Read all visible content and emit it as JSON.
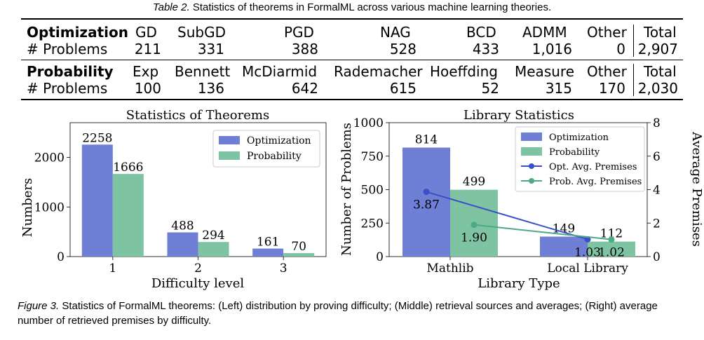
{
  "table": {
    "caption_label": "Table 2.",
    "caption_text": "Statistics of theorems in FormalML across various machine learning theories.",
    "sections": [
      {
        "name": "Optimization",
        "row_label": "# Problems",
        "columns": [
          "GD",
          "SubGD",
          "PGD",
          "NAG",
          "BCD",
          "ADMM",
          "Other"
        ],
        "values": [
          "211",
          "331",
          "388",
          "528",
          "433",
          "1,016",
          "0"
        ],
        "total_label": "Total",
        "total_value": "2,907"
      },
      {
        "name": "Probability",
        "row_label": "# Problems",
        "columns": [
          "Exp",
          "Bennett",
          "McDiarmid",
          "Rademacher",
          "Hoeffding",
          "Measure",
          "Other"
        ],
        "values": [
          "100",
          "136",
          "642",
          "615",
          "52",
          "315",
          "170"
        ],
        "total_label": "Total",
        "total_value": "2,030"
      }
    ]
  },
  "chart_data": [
    {
      "type": "bar",
      "title": "Statistics of Theorems",
      "xlabel": "Difficulty level",
      "ylabel": "Numbers",
      "categories": [
        "1",
        "2",
        "3"
      ],
      "series": [
        {
          "name": "Optimization",
          "values": [
            2258,
            488,
            161
          ],
          "color": "#6f7fd6"
        },
        {
          "name": "Probability",
          "values": [
            1666,
            294,
            70
          ],
          "color": "#7fc4a2"
        }
      ],
      "ylim": [
        0,
        2700
      ],
      "yticks": [
        0,
        1000,
        2000
      ],
      "legend": "top-right"
    },
    {
      "type": "bar",
      "title": "Library Statistics",
      "xlabel": "Library Type",
      "ylabel": "Number of Problems",
      "y2label": "Average Premises",
      "categories": [
        "Mathlib",
        "Local Library"
      ],
      "series": [
        {
          "name": "Optimization",
          "values": [
            814,
            149
          ],
          "color": "#6f7fd6"
        },
        {
          "name": "Probability",
          "values": [
            499,
            112
          ],
          "color": "#7fc4a2"
        }
      ],
      "line_series": [
        {
          "name": "Opt. Avg. Premises",
          "values": [
            3.87,
            1.03
          ],
          "labels": [
            "3.87",
            "1.03"
          ],
          "color": "#3a4fc9"
        },
        {
          "name": "Prob. Avg. Premises",
          "values": [
            1.9,
            1.02
          ],
          "labels": [
            "1.90",
            "1.02"
          ],
          "color": "#4ea986"
        }
      ],
      "ylim": [
        0,
        1000
      ],
      "yticks": [
        0,
        250,
        500,
        750,
        1000
      ],
      "y2lim": [
        0,
        8
      ],
      "y2ticks": [
        0,
        2,
        4,
        6,
        8
      ],
      "legend": "top-right"
    }
  ],
  "figure_caption": {
    "label": "Figure 3.",
    "text": "Statistics of FormalML theorems: (Left) distribution by proving difficulty; (Middle) retrieval sources and averages; (Right) average number of retrieved premises by difficulty."
  }
}
